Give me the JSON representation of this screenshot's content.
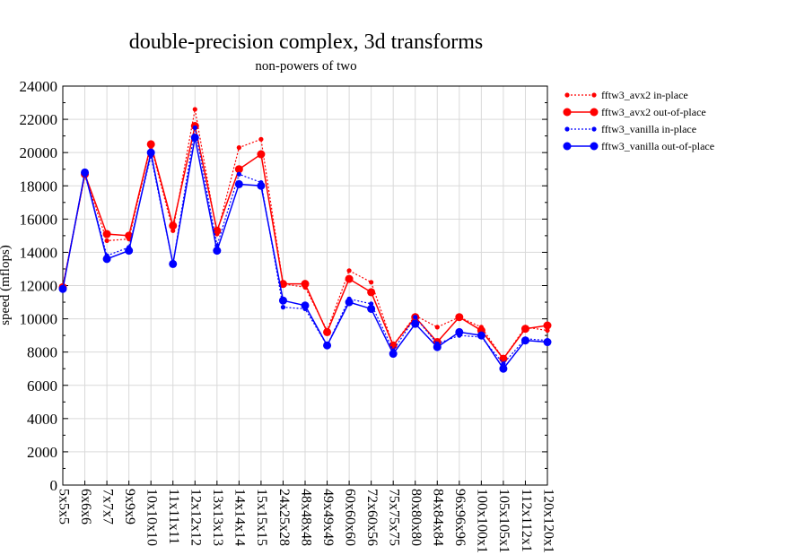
{
  "chart_data": {
    "type": "line",
    "title": "double-precision complex, 3d transforms",
    "subtitle": "non-powers of two",
    "ylabel": "speed (mflops)",
    "xlabel": "",
    "ylim": [
      0,
      24000
    ],
    "yticks": [
      0,
      2000,
      4000,
      6000,
      8000,
      10000,
      12000,
      14000,
      16000,
      18000,
      20000,
      22000,
      24000
    ],
    "grid": true,
    "legend_position": "right",
    "categories": [
      "5x5x5",
      "6x6x6",
      "7x7x7",
      "9x9x9",
      "10x10x10",
      "11x11x11",
      "12x12x12",
      "13x13x13",
      "14x14x14",
      "15x15x15",
      "24x25x28",
      "48x48x48",
      "49x49x49",
      "60x60x60",
      "72x60x56",
      "75x75x75",
      "80x80x80",
      "84x84x84",
      "96x96x96",
      "100x100x1",
      "105x105x1",
      "112x112x1",
      "120x120x1"
    ],
    "series": [
      {
        "name": "fftw3_avx2 in-place",
        "color": "#ff0000",
        "style": "dotted",
        "marker": "small",
        "values": [
          12000,
          18600,
          14700,
          14800,
          20400,
          15300,
          22600,
          15100,
          20300,
          20800,
          12100,
          11900,
          9300,
          12900,
          12200,
          8400,
          10200,
          9500,
          10100,
          9500,
          7600,
          9500,
          9300
        ]
      },
      {
        "name": "fftw3_avx2 out-of-place",
        "color": "#ff0000",
        "style": "solid",
        "marker": "large",
        "values": [
          11900,
          18700,
          15100,
          15000,
          20500,
          15600,
          21600,
          15300,
          19000,
          19900,
          12100,
          12100,
          9200,
          12400,
          11600,
          8400,
          10100,
          8600,
          10100,
          9300,
          7600,
          9400,
          9600
        ]
      },
      {
        "name": "fftw3_vanilla in-place",
        "color": "#0000ff",
        "style": "dotted",
        "marker": "small",
        "values": [
          11800,
          18800,
          13800,
          14300,
          19800,
          13300,
          21500,
          14400,
          18700,
          18200,
          10700,
          10600,
          8400,
          11200,
          10900,
          8100,
          10100,
          8500,
          9000,
          8900,
          7300,
          8800,
          8700
        ]
      },
      {
        "name": "fftw3_vanilla out-of-place",
        "color": "#0000ff",
        "style": "solid",
        "marker": "large",
        "values": [
          11800,
          18800,
          13600,
          14100,
          20000,
          13300,
          20900,
          14100,
          18100,
          18000,
          11100,
          10800,
          8400,
          11000,
          10600,
          7900,
          9700,
          8300,
          9200,
          9000,
          7000,
          8700,
          8600
        ]
      }
    ]
  }
}
